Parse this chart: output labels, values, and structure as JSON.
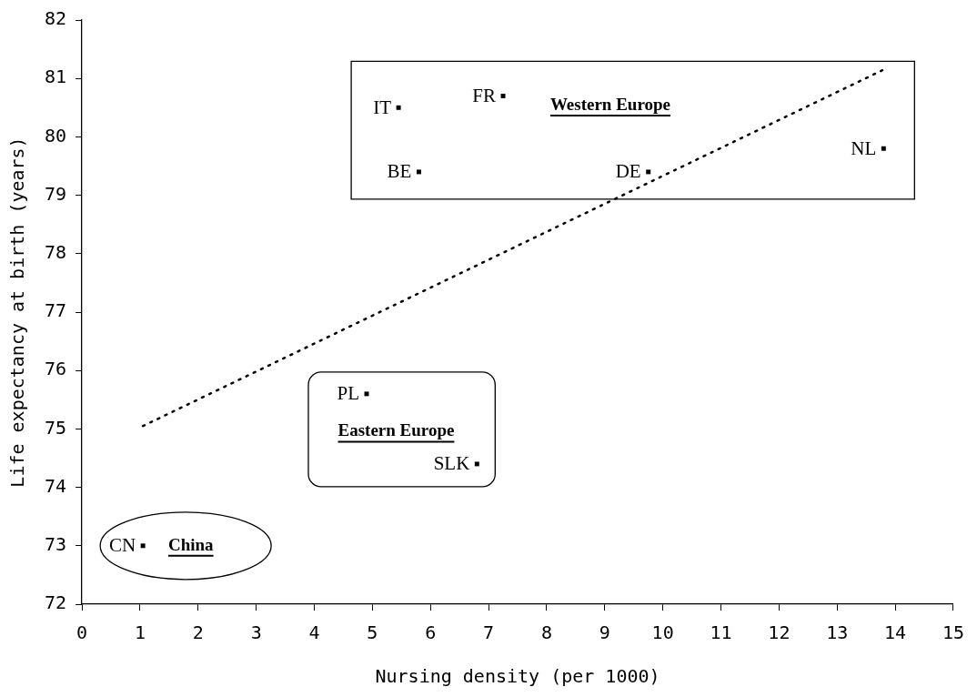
{
  "chart_data": {
    "type": "scatter",
    "xlabel": "Nursing density (per 1000)",
    "ylabel": "Life expectancy at birth (years)",
    "xlim": [
      0,
      15
    ],
    "xticks": [
      0,
      1,
      2,
      3,
      4,
      5,
      6,
      7,
      8,
      9,
      10,
      11,
      12,
      13,
      14,
      15
    ],
    "ylim": [
      72,
      82
    ],
    "yticks": [
      72,
      73,
      74,
      75,
      76,
      77,
      78,
      79,
      80,
      81,
      82
    ],
    "grid": false,
    "legend": false,
    "marker": "square",
    "series": [
      {
        "name": "Western Europe",
        "color": "#000000",
        "x": [
          5.45,
          5.8,
          7.25,
          9.75,
          13.8
        ],
        "values": [
          80.5,
          79.4,
          80.7,
          79.4,
          79.8
        ]
      },
      {
        "name": "Eastern Europe",
        "color": "#000000",
        "x": [
          4.9,
          6.8
        ],
        "values": [
          75.6,
          74.4
        ]
      },
      {
        "name": "China",
        "color": "#000000",
        "x": [
          1.05
        ],
        "values": [
          73.0
        ]
      },
      {
        "type": "line",
        "color": "#000000",
        "line_style": "dotted",
        "marker": "none",
        "x": [
          1.05,
          13.8
        ],
        "values": [
          75.05,
          81.15
        ]
      }
    ],
    "annotations": [
      {
        "text": "IT",
        "x": 5.45,
        "y": 80.5
      },
      {
        "text": "BE",
        "x": 5.8,
        "y": 79.4
      },
      {
        "text": "FR",
        "x": 7.25,
        "y": 80.7
      },
      {
        "text": "DE",
        "x": 9.75,
        "y": 79.4
      },
      {
        "text": "NL",
        "x": 13.8,
        "y": 79.8
      },
      {
        "text": "PL",
        "x": 4.9,
        "y": 75.6
      },
      {
        "text": "SLK",
        "x": 6.8,
        "y": 74.4
      },
      {
        "text": "CN",
        "x": 1.05,
        "y": 73.0
      }
    ]
  }
}
